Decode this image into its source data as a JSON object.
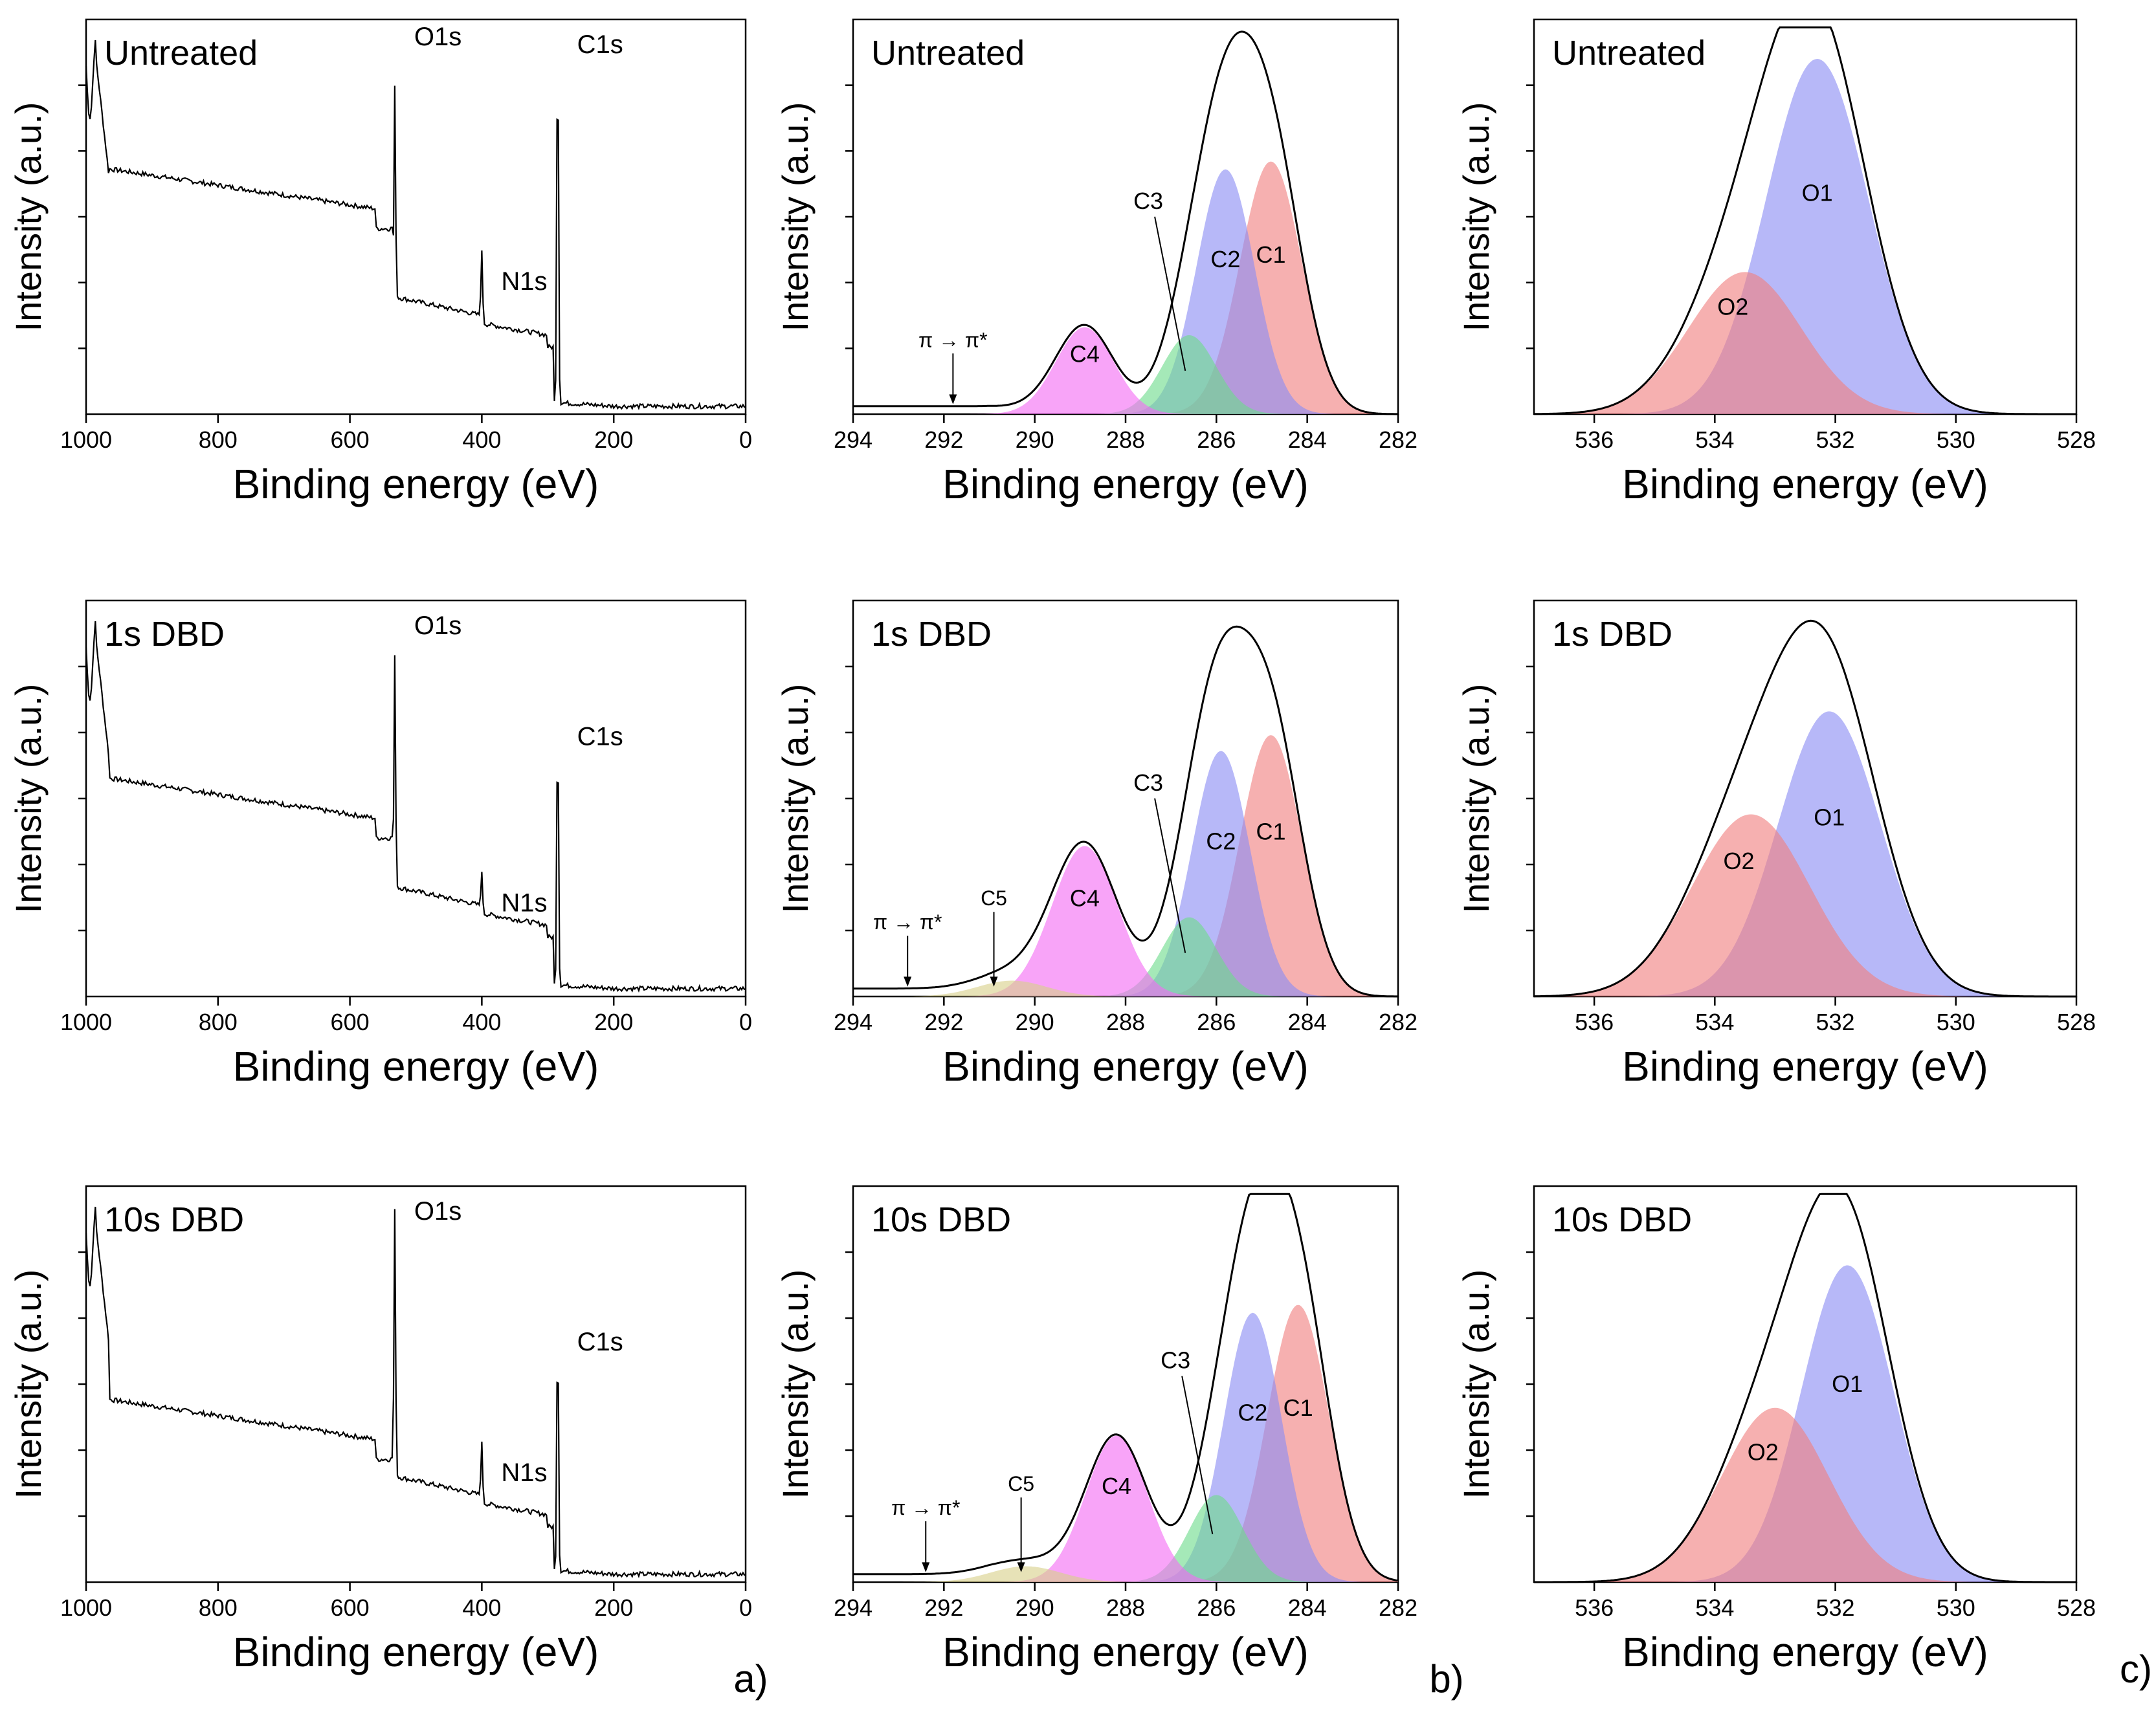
{
  "colors": {
    "C1": "#f08080",
    "C2": "#8a8cf4",
    "C3": "#6edc8c",
    "C4": "#f46cf4",
    "C5": "#d8d08a",
    "O1": "#8a8cf4",
    "O2": "#f08080",
    "overlap": "#b060c0",
    "line": "#000000",
    "fitline": "#7a7a7a"
  },
  "chart_data": [
    {
      "id": "survey-untreated",
      "type": "line",
      "title": "Untreated",
      "xlabel": "Binding energy (eV)",
      "ylabel": "Intensity (a.u.)",
      "xlim": [
        1000,
        0
      ],
      "xticks": [
        1000,
        800,
        600,
        400,
        200,
        0
      ],
      "labels": [
        {
          "text": "O1s",
          "x": 532
        },
        {
          "text": "N1s",
          "x": 400
        },
        {
          "text": "C1s",
          "x": 285
        }
      ],
      "survey": {
        "plateau": 0.52,
        "o1s_jump": 0.3,
        "o1s_peak": 1.0,
        "n1s_peak": 0.38,
        "mid": 0.2,
        "c1s_peak": 0.98
      }
    },
    {
      "id": "c1s-untreated",
      "type": "area",
      "title": "Untreated",
      "xlabel": "Binding energy (eV)",
      "ylabel": "Intensity (a.u.)",
      "xlim": [
        294,
        282
      ],
      "xticks": [
        294,
        292,
        290,
        288,
        286,
        284,
        282
      ],
      "series": [
        {
          "name": "C1",
          "center": 284.8,
          "height": 0.64,
          "fwhm": 1.6
        },
        {
          "name": "C2",
          "center": 285.8,
          "height": 0.62,
          "fwhm": 1.5
        },
        {
          "name": "C3",
          "center": 286.6,
          "height": 0.2,
          "fwhm": 1.4
        },
        {
          "name": "C4",
          "center": 288.9,
          "height": 0.22,
          "fwhm": 1.5
        }
      ],
      "annotations": [
        {
          "text": "π → π*",
          "x": 291.8
        }
      ]
    },
    {
      "id": "o1s-untreated",
      "type": "area",
      "title": "Untreated",
      "xlabel": "Binding energy (eV)",
      "ylabel": "Intensity (a.u.)",
      "xlim": [
        537,
        528
      ],
      "xticks": [
        536,
        534,
        532,
        530,
        528
      ],
      "series": [
        {
          "name": "O1",
          "center": 532.3,
          "height": 0.9,
          "fwhm": 2.0
        },
        {
          "name": "O2",
          "center": 533.5,
          "height": 0.36,
          "fwhm": 2.2
        }
      ]
    },
    {
      "id": "survey-1s",
      "type": "line",
      "title": "1s DBD",
      "xlabel": "Binding energy (eV)",
      "ylabel": "Intensity (a.u.)",
      "xlim": [
        1000,
        0
      ],
      "xticks": [
        1000,
        800,
        600,
        400,
        200,
        0
      ],
      "labels": [
        {
          "text": "O1s",
          "x": 532
        },
        {
          "text": "N1s",
          "x": 400
        },
        {
          "text": "C1s",
          "x": 285
        }
      ],
      "survey": {
        "plateau": 0.45,
        "o1s_jump": 0.3,
        "o1s_peak": 0.98,
        "n1s_peak": 0.28,
        "mid": 0.18,
        "c1s_peak": 0.7
      }
    },
    {
      "id": "c1s-1s",
      "type": "area",
      "title": "1s DBD",
      "xlabel": "Binding energy (eV)",
      "ylabel": "Intensity (a.u.)",
      "xlim": [
        294,
        282
      ],
      "xticks": [
        294,
        292,
        290,
        288,
        286,
        284,
        282
      ],
      "series": [
        {
          "name": "C1",
          "center": 284.8,
          "height": 0.66,
          "fwhm": 1.6
        },
        {
          "name": "C2",
          "center": 285.9,
          "height": 0.62,
          "fwhm": 1.5
        },
        {
          "name": "C3",
          "center": 286.6,
          "height": 0.2,
          "fwhm": 1.4
        },
        {
          "name": "C4",
          "center": 288.9,
          "height": 0.38,
          "fwhm": 1.7
        },
        {
          "name": "C5",
          "center": 290.5,
          "height": 0.04,
          "fwhm": 1.8
        }
      ],
      "annotations": [
        {
          "text": "π → π*",
          "x": 292.8
        },
        {
          "text": "C5",
          "x": 290.9
        }
      ]
    },
    {
      "id": "o1s-1s",
      "type": "area",
      "title": "1s DBD",
      "xlabel": "Binding energy (eV)",
      "ylabel": "Intensity (a.u.)",
      "xlim": [
        537,
        528
      ],
      "xticks": [
        536,
        534,
        532,
        530,
        528
      ],
      "series": [
        {
          "name": "O1",
          "center": 532.1,
          "height": 0.72,
          "fwhm": 2.0
        },
        {
          "name": "O2",
          "center": 533.4,
          "height": 0.46,
          "fwhm": 2.3
        }
      ]
    },
    {
      "id": "survey-10s",
      "type": "line",
      "title": "10s DBD",
      "xlabel": "Binding energy (eV)",
      "ylabel": "Intensity (a.u.)",
      "xlim": [
        1000,
        0
      ],
      "xticks": [
        1000,
        800,
        600,
        400,
        200,
        0
      ],
      "labels": [
        {
          "text": "O1s",
          "x": 532
        },
        {
          "text": "N1s",
          "x": 400
        },
        {
          "text": "C1s",
          "x": 285
        }
      ],
      "survey": {
        "plateau": 0.36,
        "o1s_jump": 0.3,
        "o1s_peak": 0.98,
        "n1s_peak": 0.32,
        "mid": 0.17,
        "c1s_peak": 0.65
      }
    },
    {
      "id": "c1s-10s",
      "type": "area",
      "title": "10s DBD",
      "xlabel": "Binding energy (eV)",
      "ylabel": "Intensity (a.u.)",
      "xlim": [
        294,
        282
      ],
      "xticks": [
        294,
        292,
        290,
        288,
        286,
        284,
        282
      ],
      "series": [
        {
          "name": "C1",
          "center": 284.2,
          "height": 0.7,
          "fwhm": 1.6
        },
        {
          "name": "C2",
          "center": 285.2,
          "height": 0.68,
          "fwhm": 1.5
        },
        {
          "name": "C3",
          "center": 286.0,
          "height": 0.22,
          "fwhm": 1.4
        },
        {
          "name": "C4",
          "center": 288.2,
          "height": 0.37,
          "fwhm": 1.6
        },
        {
          "name": "C5",
          "center": 290.2,
          "height": 0.04,
          "fwhm": 1.8
        }
      ],
      "annotations": [
        {
          "text": "π → π*",
          "x": 292.4
        },
        {
          "text": "C5",
          "x": 290.3
        }
      ]
    },
    {
      "id": "o1s-10s",
      "type": "area",
      "title": "10s DBD",
      "xlabel": "Binding energy (eV)",
      "ylabel": "Intensity (a.u.)",
      "xlim": [
        537,
        528
      ],
      "xticks": [
        536,
        534,
        532,
        530,
        528
      ],
      "series": [
        {
          "name": "O1",
          "center": 531.8,
          "height": 0.8,
          "fwhm": 1.8
        },
        {
          "name": "O2",
          "center": 533.0,
          "height": 0.44,
          "fwhm": 2.1
        }
      ]
    }
  ],
  "panel_letters": [
    "a)",
    "b)",
    "c)"
  ]
}
